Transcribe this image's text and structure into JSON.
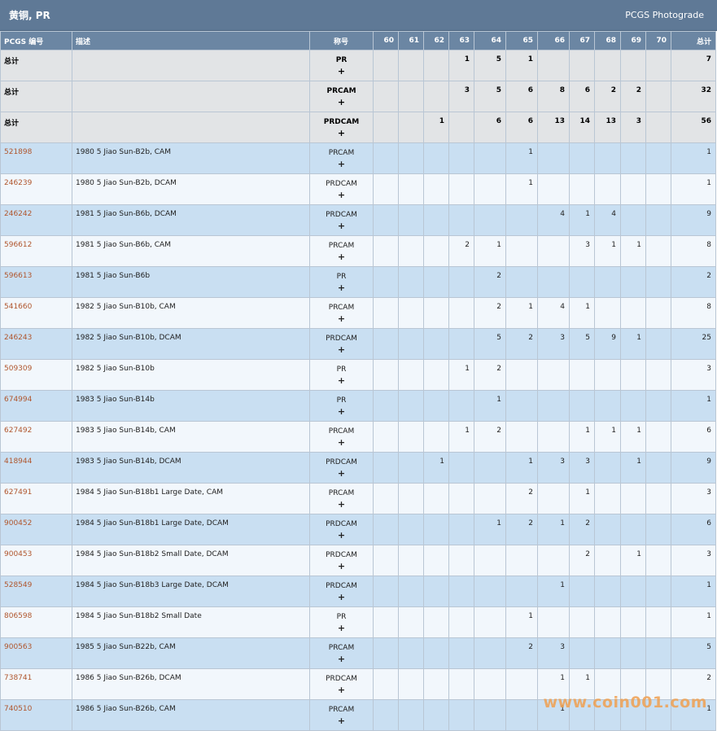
{
  "header": {
    "title": "黄铜, PR",
    "brand": "PCGS Photograde"
  },
  "columns": {
    "pcgs": "PCGS 编号",
    "desc": "描述",
    "designation": "称号",
    "grades": [
      "60",
      "61",
      "62",
      "63",
      "64",
      "65",
      "66",
      "67",
      "68",
      "69",
      "70"
    ],
    "total": "总计"
  },
  "plus_symbol": "+",
  "watermark": "www.coin001.com",
  "rows": [
    {
      "type": "tot",
      "pcgs": "总计",
      "desc": "",
      "designation": "PR",
      "grades": [
        "",
        "",
        "",
        "1",
        "5",
        "1",
        "",
        "",
        "",
        "",
        ""
      ],
      "total": "7"
    },
    {
      "type": "tot",
      "pcgs": "总计",
      "desc": "",
      "designation": "PRCAM",
      "grades": [
        "",
        "",
        "",
        "3",
        "5",
        "6",
        "8",
        "6",
        "2",
        "2",
        ""
      ],
      "total": "32"
    },
    {
      "type": "tot",
      "pcgs": "总计",
      "desc": "",
      "designation": "PRDCAM",
      "grades": [
        "",
        "",
        "1",
        "",
        "6",
        "6",
        "13",
        "14",
        "13",
        "3",
        ""
      ],
      "total": "56"
    },
    {
      "type": "row",
      "pcgs": "521898",
      "desc": "1980 5 Jiao Sun-B2b, CAM",
      "designation": "PRCAM",
      "grades": [
        "",
        "",
        "",
        "",
        "",
        "1",
        "",
        "",
        "",
        "",
        ""
      ],
      "total": "1"
    },
    {
      "type": "row",
      "pcgs": "246239",
      "desc": "1980 5 Jiao Sun-B2b, DCAM",
      "designation": "PRDCAM",
      "grades": [
        "",
        "",
        "",
        "",
        "",
        "1",
        "",
        "",
        "",
        "",
        ""
      ],
      "total": "1"
    },
    {
      "type": "row",
      "pcgs": "246242",
      "desc": "1981 5 Jiao Sun-B6b, DCAM",
      "designation": "PRDCAM",
      "grades": [
        "",
        "",
        "",
        "",
        "",
        "",
        "4",
        "1",
        "4",
        "",
        ""
      ],
      "total": "9"
    },
    {
      "type": "row",
      "pcgs": "596612",
      "desc": "1981 5 Jiao Sun-B6b, CAM",
      "designation": "PRCAM",
      "grades": [
        "",
        "",
        "",
        "2",
        "1",
        "",
        "",
        "3",
        "1",
        "1",
        ""
      ],
      "total": "8"
    },
    {
      "type": "row",
      "pcgs": "596613",
      "desc": "1981 5 Jiao Sun-B6b",
      "designation": "PR",
      "grades": [
        "",
        "",
        "",
        "",
        "2",
        "",
        "",
        "",
        "",
        "",
        ""
      ],
      "total": "2"
    },
    {
      "type": "row",
      "pcgs": "541660",
      "desc": "1982 5 Jiao Sun-B10b, CAM",
      "designation": "PRCAM",
      "grades": [
        "",
        "",
        "",
        "",
        "2",
        "1",
        "4",
        "1",
        "",
        "",
        ""
      ],
      "total": "8"
    },
    {
      "type": "row",
      "pcgs": "246243",
      "desc": "1982 5 Jiao Sun-B10b, DCAM",
      "designation": "PRDCAM",
      "grades": [
        "",
        "",
        "",
        "",
        "5",
        "2",
        "3",
        "5",
        "9",
        "1",
        ""
      ],
      "total": "25"
    },
    {
      "type": "row",
      "pcgs": "509309",
      "desc": "1982 5 Jiao Sun-B10b",
      "designation": "PR",
      "grades": [
        "",
        "",
        "",
        "1",
        "2",
        "",
        "",
        "",
        "",
        "",
        ""
      ],
      "total": "3"
    },
    {
      "type": "row",
      "pcgs": "674994",
      "desc": "1983 5 Jiao Sun-B14b",
      "designation": "PR",
      "grades": [
        "",
        "",
        "",
        "",
        "1",
        "",
        "",
        "",
        "",
        "",
        ""
      ],
      "total": "1"
    },
    {
      "type": "row",
      "pcgs": "627492",
      "desc": "1983 5 Jiao Sun-B14b, CAM",
      "designation": "PRCAM",
      "grades": [
        "",
        "",
        "",
        "1",
        "2",
        "",
        "",
        "1",
        "1",
        "1",
        ""
      ],
      "total": "6"
    },
    {
      "type": "row",
      "pcgs": "418944",
      "desc": "1983 5 Jiao Sun-B14b, DCAM",
      "designation": "PRDCAM",
      "grades": [
        "",
        "",
        "1",
        "",
        "",
        "1",
        "3",
        "3",
        "",
        "1",
        ""
      ],
      "total": "9"
    },
    {
      "type": "row",
      "pcgs": "627491",
      "desc": "1984 5 Jiao Sun-B18b1 Large Date, CAM",
      "designation": "PRCAM",
      "grades": [
        "",
        "",
        "",
        "",
        "",
        "2",
        "",
        "1",
        "",
        "",
        ""
      ],
      "total": "3"
    },
    {
      "type": "row",
      "pcgs": "900452",
      "desc": "1984 5 Jiao Sun-B18b1 Large Date, DCAM",
      "designation": "PRDCAM",
      "grades": [
        "",
        "",
        "",
        "",
        "1",
        "2",
        "1",
        "2",
        "",
        "",
        ""
      ],
      "total": "6"
    },
    {
      "type": "row",
      "pcgs": "900453",
      "desc": "1984 5 Jiao Sun-B18b2 Small Date, DCAM",
      "designation": "PRDCAM",
      "grades": [
        "",
        "",
        "",
        "",
        "",
        "",
        "",
        "2",
        "",
        "1",
        ""
      ],
      "total": "3"
    },
    {
      "type": "row",
      "pcgs": "528549",
      "desc": "1984 5 Jiao Sun-B18b3 Large Date, DCAM",
      "designation": "PRDCAM",
      "grades": [
        "",
        "",
        "",
        "",
        "",
        "",
        "1",
        "",
        "",
        "",
        ""
      ],
      "total": "1"
    },
    {
      "type": "row",
      "pcgs": "806598",
      "desc": "1984 5 Jiao Sun-B18b2 Small Date",
      "designation": "PR",
      "grades": [
        "",
        "",
        "",
        "",
        "",
        "1",
        "",
        "",
        "",
        "",
        ""
      ],
      "total": "1"
    },
    {
      "type": "row",
      "pcgs": "900563",
      "desc": "1985 5 Jiao Sun-B22b, CAM",
      "designation": "PRCAM",
      "grades": [
        "",
        "",
        "",
        "",
        "",
        "2",
        "3",
        "",
        "",
        "",
        ""
      ],
      "total": "5"
    },
    {
      "type": "row",
      "pcgs": "738741",
      "desc": "1986 5 Jiao Sun-B26b, DCAM",
      "designation": "PRDCAM",
      "grades": [
        "",
        "",
        "",
        "",
        "",
        "",
        "1",
        "1",
        "",
        "",
        ""
      ],
      "total": "2"
    },
    {
      "type": "row",
      "pcgs": "740510",
      "desc": "1986 5 Jiao Sun-B26b, CAM",
      "designation": "PRCAM",
      "grades": [
        "",
        "",
        "",
        "",
        "",
        "",
        "1",
        "",
        "",
        "",
        ""
      ],
      "total": "1"
    }
  ]
}
